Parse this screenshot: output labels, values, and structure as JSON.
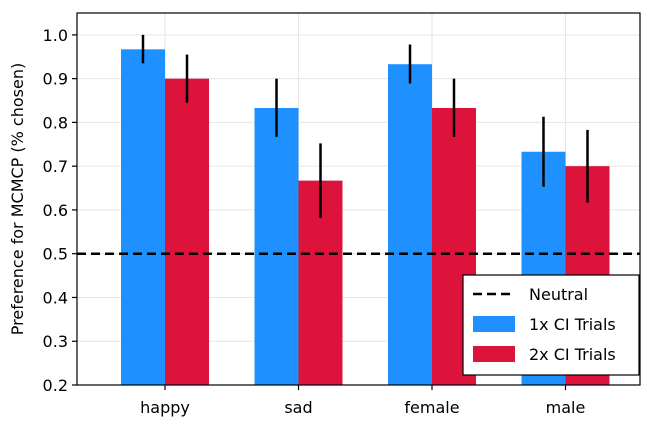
{
  "chart_data": {
    "type": "bar",
    "title": "",
    "xlabel": "",
    "ylabel": "Preference for MCMCP (% chosen)",
    "categories": [
      "happy",
      "sad",
      "female",
      "male"
    ],
    "ylim": [
      0.2,
      1.05
    ],
    "yticks": [
      "0.2",
      "0.3",
      "0.4",
      "0.5",
      "0.6",
      "0.7",
      "0.8",
      "0.9",
      "1.0"
    ],
    "grid": true,
    "legend_position": "bottom-right",
    "series": [
      {
        "name": "1x CI Trials",
        "color": "#1e90ff",
        "values": [
          0.967,
          0.833,
          0.933,
          0.733
        ],
        "error_low": [
          0.935,
          0.767,
          0.889,
          0.653
        ],
        "error_high": [
          1.0,
          0.9,
          0.978,
          0.813
        ]
      },
      {
        "name": "2x CI Trials",
        "color": "#dc143c",
        "values": [
          0.9,
          0.667,
          0.833,
          0.7
        ],
        "error_low": [
          0.845,
          0.582,
          0.767,
          0.617
        ],
        "error_high": [
          0.955,
          0.752,
          0.9,
          0.783
        ]
      }
    ],
    "reference_line": {
      "name": "Neutral",
      "value": 0.5,
      "style": "dashed",
      "color": "#000000"
    }
  }
}
